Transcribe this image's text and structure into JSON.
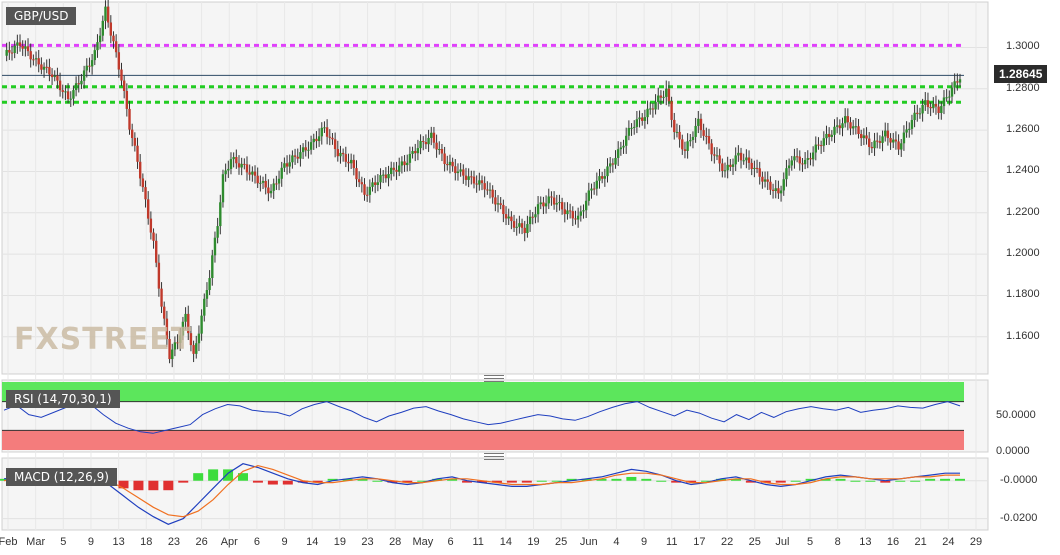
{
  "chart_data": [
    {
      "type": "candlestick",
      "title": "GBP/USD",
      "last_price_label": "1.28645",
      "ylim": [
        1.142,
        1.322
      ],
      "y_ticks": [
        "1.3000",
        "1.2800",
        "1.2600",
        "1.2400",
        "1.2200",
        "1.2000",
        "1.1800",
        "1.1600"
      ],
      "y_tick_values": [
        1.3,
        1.28,
        1.26,
        1.24,
        1.22,
        1.2,
        1.18,
        1.16
      ],
      "x_ticks": [
        "Feb",
        "Mar",
        "5",
        "9",
        "13",
        "18",
        "23",
        "26",
        "Apr",
        "6",
        "9",
        "14",
        "19",
        "23",
        "28",
        "May",
        "6",
        "11",
        "14",
        "19",
        "25",
        "Jun",
        "4",
        "9",
        "11",
        "17",
        "22",
        "25",
        "Jul",
        "5",
        "8",
        "13",
        "16",
        "21",
        "24",
        "29"
      ],
      "close_path": [
        [
          0,
          1.296
        ],
        [
          6,
          1.302
        ],
        [
          12,
          1.293
        ],
        [
          18,
          1.287
        ],
        [
          24,
          1.275
        ],
        [
          28,
          1.283
        ],
        [
          34,
          1.297
        ],
        [
          38,
          1.318
        ],
        [
          41,
          1.302
        ],
        [
          44,
          1.285
        ],
        [
          47,
          1.262
        ],
        [
          50,
          1.245
        ],
        [
          53,
          1.225
        ],
        [
          56,
          1.205
        ],
        [
          59,
          1.175
        ],
        [
          62,
          1.151
        ],
        [
          65,
          1.158
        ],
        [
          68,
          1.17
        ],
        [
          71,
          1.15
        ],
        [
          74,
          1.17
        ],
        [
          77,
          1.19
        ],
        [
          80,
          1.215
        ],
        [
          82,
          1.237
        ],
        [
          85,
          1.246
        ],
        [
          90,
          1.242
        ],
        [
          95,
          1.236
        ],
        [
          100,
          1.23
        ],
        [
          105,
          1.243
        ],
        [
          110,
          1.248
        ],
        [
          115,
          1.253
        ],
        [
          120,
          1.261
        ],
        [
          125,
          1.249
        ],
        [
          130,
          1.244
        ],
        [
          135,
          1.229
        ],
        [
          140,
          1.236
        ],
        [
          145,
          1.24
        ],
        [
          150,
          1.244
        ],
        [
          155,
          1.252
        ],
        [
          160,
          1.257
        ],
        [
          165,
          1.245
        ],
        [
          170,
          1.24
        ],
        [
          175,
          1.236
        ],
        [
          180,
          1.233
        ],
        [
          185,
          1.224
        ],
        [
          190,
          1.215
        ],
        [
          195,
          1.212
        ],
        [
          200,
          1.223
        ],
        [
          205,
          1.227
        ],
        [
          210,
          1.221
        ],
        [
          215,
          1.217
        ],
        [
          220,
          1.232
        ],
        [
          225,
          1.239
        ],
        [
          230,
          1.249
        ],
        [
          235,
          1.262
        ],
        [
          240,
          1.267
        ],
        [
          245,
          1.275
        ],
        [
          248,
          1.279
        ],
        [
          251,
          1.26
        ],
        [
          255,
          1.25
        ],
        [
          260,
          1.264
        ],
        [
          265,
          1.25
        ],
        [
          270,
          1.24
        ],
        [
          275,
          1.248
        ],
        [
          280,
          1.243
        ],
        [
          285,
          1.235
        ],
        [
          290,
          1.229
        ],
        [
          295,
          1.247
        ],
        [
          300,
          1.244
        ],
        [
          305,
          1.253
        ],
        [
          310,
          1.259
        ],
        [
          315,
          1.265
        ],
        [
          320,
          1.259
        ],
        [
          325,
          1.252
        ],
        [
          330,
          1.258
        ],
        [
          335,
          1.252
        ],
        [
          340,
          1.265
        ],
        [
          345,
          1.273
        ],
        [
          350,
          1.27
        ],
        [
          355,
          1.28
        ],
        [
          358,
          1.286
        ]
      ],
      "horizontal_lines": [
        {
          "value": 1.301,
          "color": "#e040fb",
          "style": "dotted"
        },
        {
          "value": 1.2865,
          "color": "#2e4a66",
          "style": "solid"
        },
        {
          "value": 1.281,
          "color": "#22cc22",
          "style": "dotted"
        },
        {
          "value": 1.2735,
          "color": "#22cc22",
          "style": "dotted"
        }
      ],
      "watermark": "FXSTREET"
    },
    {
      "type": "line",
      "title": "RSI (14,70,30,1)",
      "ylim": [
        0,
        100
      ],
      "y_ticks": [
        "50.0000",
        "0.0000"
      ],
      "y_tick_values": [
        50,
        0
      ],
      "overbought": 70,
      "oversold": 30,
      "zone_colors": {
        "overbought": "#5ce65c",
        "oversold": "#f47c7c"
      },
      "series": [
        {
          "color": "#1f3fbf",
          "values": [
            58,
            65,
            52,
            48,
            55,
            62,
            70,
            66,
            52,
            40,
            33,
            28,
            26,
            30,
            34,
            38,
            52,
            60,
            66,
            64,
            58,
            56,
            55,
            50,
            60,
            66,
            70,
            63,
            57,
            48,
            42,
            50,
            55,
            61,
            63,
            57,
            52,
            46,
            42,
            38,
            40,
            44,
            48,
            52,
            50,
            46,
            44,
            49,
            56,
            62,
            67,
            70,
            62,
            56,
            50,
            58,
            54,
            47,
            42,
            52,
            45,
            55,
            48,
            56,
            60,
            63,
            60,
            58,
            62,
            55,
            58,
            60,
            64,
            62,
            61,
            66,
            70,
            64
          ]
        }
      ]
    },
    {
      "type": "line",
      "title": "MACD (12,26,9)",
      "ylim": [
        -0.026,
        0.012
      ],
      "y_ticks": [
        "-0.0000",
        "-0.0200"
      ],
      "y_tick_values": [
        0.0,
        -0.02
      ],
      "series": [
        {
          "color": "#1f3fbf",
          "values": [
            0.001,
            0.002,
            0.001,
            -0.001,
            0.002,
            0.004,
            0.003,
            -0.002,
            -0.008,
            -0.014,
            -0.019,
            -0.023,
            -0.02,
            -0.012,
            -0.004,
            0.004,
            0.009,
            0.007,
            0.004,
            0.001,
            -0.001,
            -0.002,
            0.0,
            0.001,
            0.002,
            0.001,
            -0.001,
            -0.002,
            -0.001,
            0.001,
            0.002,
            0.0,
            -0.001,
            -0.002,
            -0.003,
            -0.003,
            -0.002,
            -0.001,
            0.0,
            0.001,
            0.002,
            0.004,
            0.006,
            0.005,
            0.003,
            0.0,
            -0.002,
            -0.001,
            0.001,
            0.002,
            0.0,
            -0.002,
            -0.003,
            -0.002,
            0.0,
            0.002,
            0.003,
            0.002,
            0.001,
            0.0,
            0.001,
            0.002,
            0.003,
            0.004,
            0.004
          ]
        },
        {
          "color": "#f07020",
          "values": [
            0.0,
            0.001,
            0.001,
            0.0,
            0.001,
            0.002,
            0.003,
            0.0,
            -0.004,
            -0.009,
            -0.014,
            -0.018,
            -0.019,
            -0.016,
            -0.01,
            -0.002,
            0.005,
            0.008,
            0.006,
            0.003,
            0.0,
            -0.001,
            -0.001,
            0.0,
            0.001,
            0.001,
            0.0,
            -0.001,
            -0.001,
            0.0,
            0.001,
            0.001,
            0.0,
            -0.001,
            -0.002,
            -0.002,
            -0.002,
            -0.001,
            -0.001,
            0.0,
            0.001,
            0.003,
            0.004,
            0.004,
            0.003,
            0.001,
            -0.001,
            -0.001,
            0.0,
            0.001,
            0.001,
            -0.001,
            -0.002,
            -0.002,
            -0.001,
            0.001,
            0.002,
            0.002,
            0.001,
            0.001,
            0.001,
            0.002,
            0.002,
            0.003,
            0.003
          ]
        }
      ]
    }
  ]
}
